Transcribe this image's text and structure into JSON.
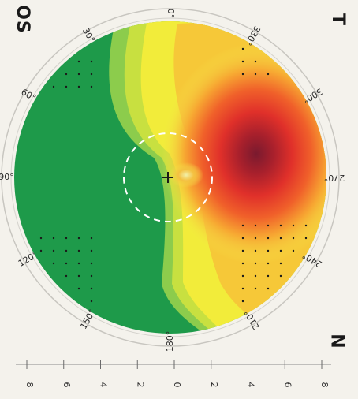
{
  "eye": "OS",
  "side_temporal": "T",
  "side_nasal": "N",
  "angle_labels": [
    "0°",
    "30°",
    "60°",
    "90°",
    "120°",
    "150°",
    "180°",
    "210°",
    "240°",
    "270°",
    "300°",
    "330°"
  ],
  "scale_ticks": [
    "8",
    "6",
    "4",
    "2",
    "0",
    "2",
    "4",
    "6",
    "8"
  ],
  "colors": {
    "background": "#f4f2ec",
    "green": "#1e9a4a",
    "light_green": "#8ccc4c",
    "yellow": "#f2ec3a",
    "orange": "#f49a2a",
    "red": "#e8322a",
    "dark_red": "#8a1c2c"
  }
}
